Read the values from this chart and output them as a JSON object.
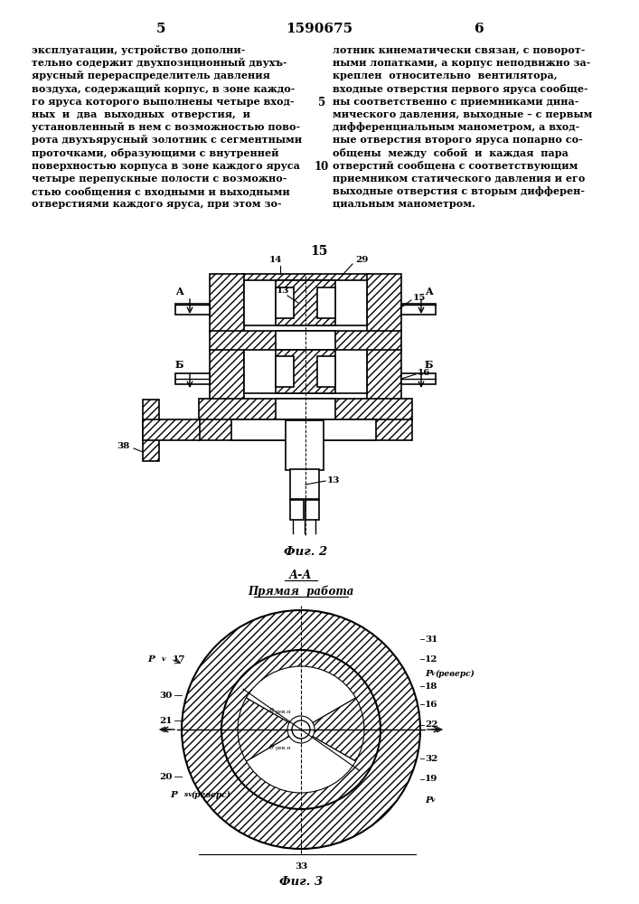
{
  "page_number_left": "5",
  "page_number_center": "1590675",
  "page_number_right": "6",
  "bg_color": "#ffffff"
}
